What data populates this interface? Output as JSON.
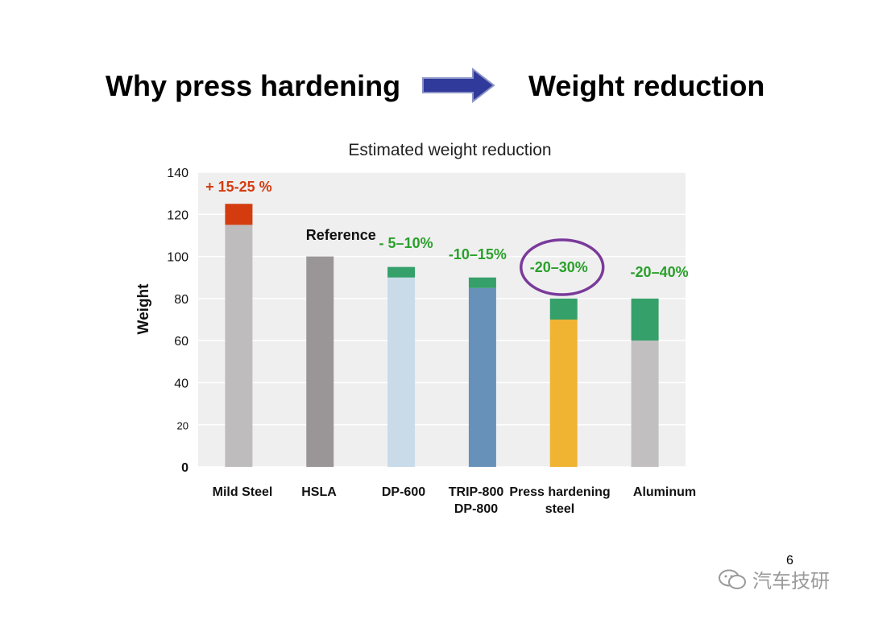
{
  "header": {
    "left_title": "Why press hardening",
    "right_title": "Weight reduction",
    "arrow_icon": "right-arrow-icon",
    "arrow_color": "#2f3a9a"
  },
  "chart_data": {
    "type": "bar",
    "title": "Estimated weight reduction",
    "xlabel": "",
    "ylabel": "Weight",
    "ylim": [
      0,
      140
    ],
    "yticks": [
      "0",
      "20",
      "40",
      "60",
      "80",
      "100",
      "120",
      "140"
    ],
    "grid": true,
    "categories": [
      {
        "lines": [
          "Mild Steel"
        ]
      },
      {
        "lines": [
          "HSLA"
        ]
      },
      {
        "lines": [
          "DP-600"
        ]
      },
      {
        "lines": [
          "TRIP-800",
          "DP-800"
        ]
      },
      {
        "lines": [
          "Press hardening",
          "steel"
        ]
      },
      {
        "lines": [
          "Aluminum"
        ]
      }
    ],
    "bars": [
      {
        "base": 115,
        "top": 125,
        "base_color": "#bfbcbe",
        "top_color": "#d43c10",
        "annotation": "+ 15-25 %",
        "annotation_color": "#d43c10"
      },
      {
        "base": 100,
        "top": 100,
        "base_color": "#9a9697",
        "top_color": "#9a9697",
        "annotation": "Reference",
        "annotation_color": "#111111"
      },
      {
        "base": 90,
        "top": 95,
        "base_color": "#c9dbe8",
        "top_color": "#35a06a",
        "annotation": "- 5–10%",
        "annotation_color": "#2aa02a"
      },
      {
        "base": 85,
        "top": 90,
        "base_color": "#6791b8",
        "top_color": "#35a06a",
        "annotation": "-10–15%",
        "annotation_color": "#2aa02a"
      },
      {
        "base": 70,
        "top": 80,
        "base_color": "#f0b332",
        "top_color": "#35a06a",
        "annotation": "-20–30%",
        "annotation_color": "#2aa02a",
        "highlighted": true
      },
      {
        "base": 60,
        "top": 80,
        "base_color": "#c2bfc1",
        "top_color": "#35a06a",
        "annotation": "-20–40%",
        "annotation_color": "#2aa02a"
      }
    ],
    "plot_background": "#efeff0",
    "highlight_color": "#7a3a9a"
  },
  "footer": {
    "page_number": "6",
    "watermark_text": "汽车技研",
    "watermark_icon": "wechat-icon"
  }
}
